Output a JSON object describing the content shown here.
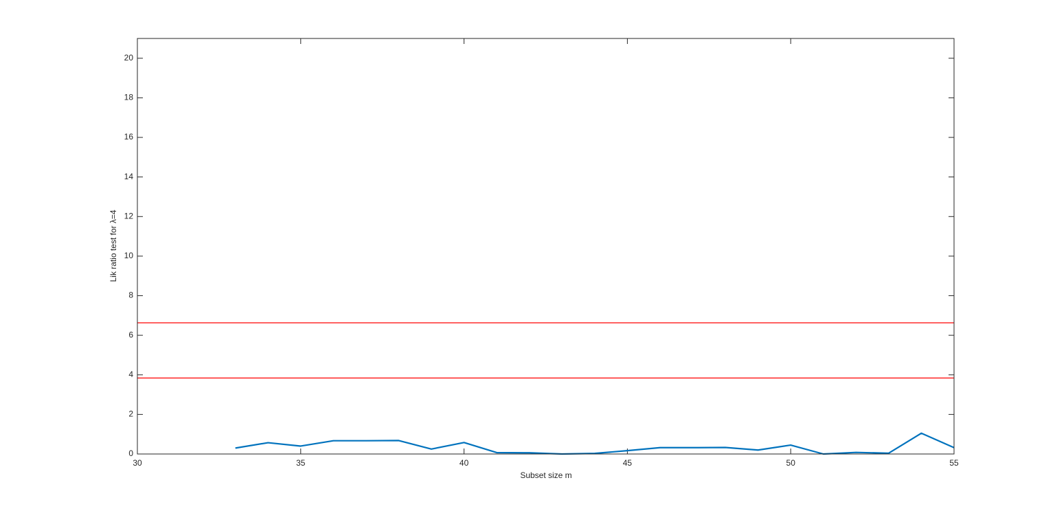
{
  "chart_data": {
    "type": "line",
    "xlabel": "Subset size m",
    "ylabel": "Lik ratio test for λ=4",
    "xlim": [
      30,
      55
    ],
    "xticks": [
      30,
      35,
      40,
      45,
      50,
      55
    ],
    "ylim": [
      0,
      21
    ],
    "yticks": [
      0,
      2,
      4,
      6,
      8,
      10,
      12,
      14,
      16,
      18,
      20
    ],
    "series": [
      {
        "color": "#0072bd",
        "x": [
          33,
          34,
          35,
          36,
          37,
          38,
          39,
          40,
          41,
          42,
          43,
          44,
          45,
          46,
          47,
          48,
          49,
          50,
          51,
          52,
          53,
          54,
          55
        ],
        "values": [
          0.3,
          0.57,
          0.4,
          0.67,
          0.67,
          0.68,
          0.25,
          0.58,
          0.07,
          0.06,
          0.0,
          0.03,
          0.17,
          0.32,
          0.32,
          0.33,
          0.2,
          0.45,
          0.0,
          0.08,
          0.04,
          1.05,
          0.32
        ]
      }
    ],
    "hlines": [
      {
        "value": 6.63,
        "color": "#ff0000"
      },
      {
        "value": 3.84,
        "color": "#ff0000"
      }
    ]
  }
}
